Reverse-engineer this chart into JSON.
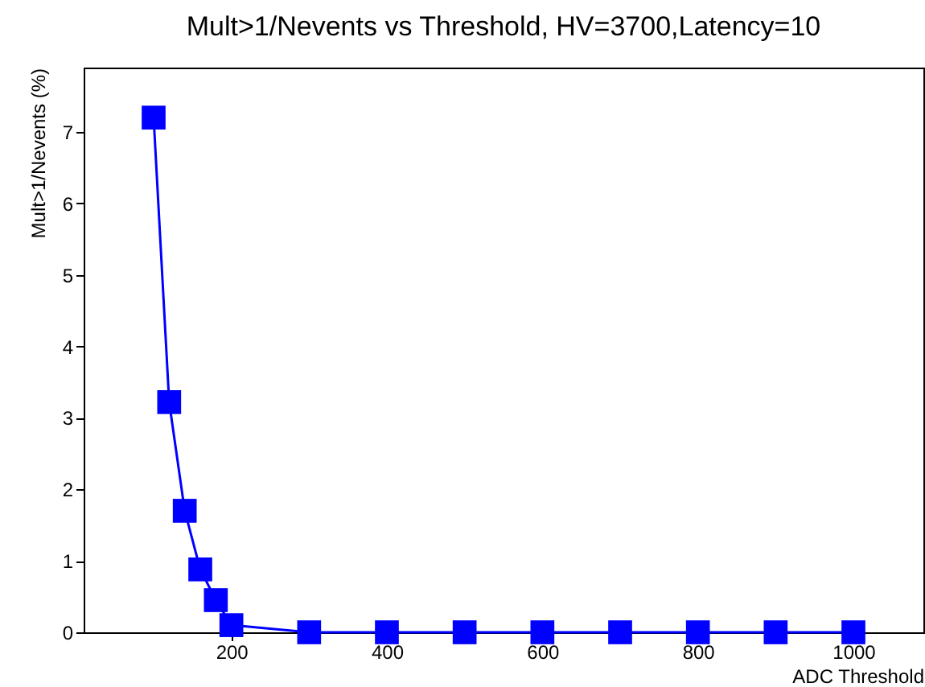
{
  "chart_data": {
    "type": "line",
    "title": "Mult>1/Nevents vs Threshold, HV=3700,Latency=10",
    "xlabel": "ADC Threshold",
    "ylabel": "Mult>1/Nevents (%)",
    "x": [
      100,
      120,
      140,
      160,
      180,
      200,
      300,
      400,
      500,
      600,
      700,
      800,
      900,
      1000
    ],
    "series": [
      {
        "color": "#0000ff",
        "values": [
          7.2,
          3.22,
          1.7,
          0.88,
          0.45,
          0.1,
          0,
          0,
          0,
          0,
          0,
          0,
          0,
          0
        ]
      }
    ],
    "xlim": [
      10,
      1090
    ],
    "xticks": [
      200,
      400,
      600,
      800,
      1000
    ],
    "ylim": [
      0,
      7.9
    ],
    "yticks": [
      0,
      1,
      2,
      3,
      4,
      5,
      6,
      7
    ],
    "marker": "square",
    "line_style": "solid",
    "grid": false
  }
}
